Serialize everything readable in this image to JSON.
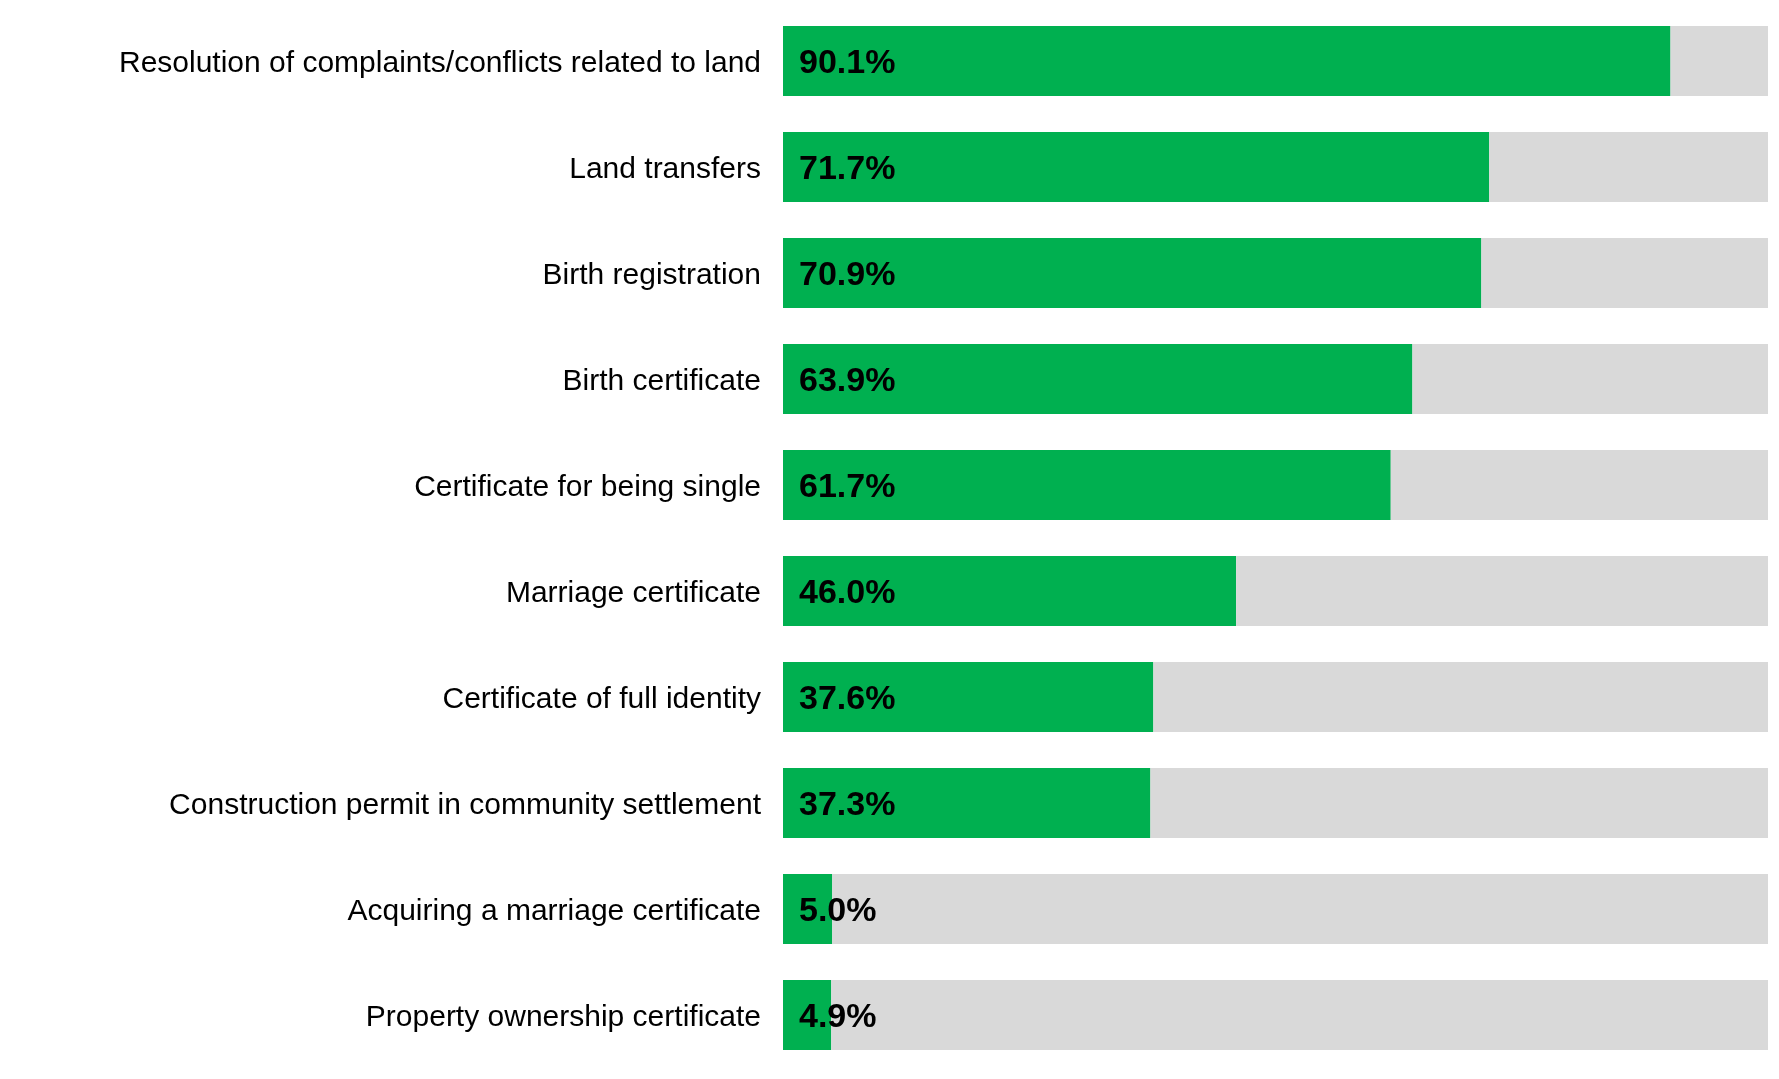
{
  "chart_data": {
    "type": "bar",
    "orientation": "horizontal",
    "stacked": true,
    "categories": [
      "Resolution of complaints/conflicts related to land",
      "Land transfers",
      "Birth registration",
      "Birth certificate",
      "Certificate for being single",
      "Marriage certificate",
      "Certificate of full identity",
      "Construction permit in community settlement",
      "Acquiring a marriage certificate",
      "Property ownership certificate"
    ],
    "series": [
      {
        "color": "#00b050",
        "values": [
          90.1,
          71.7,
          70.9,
          63.9,
          61.7,
          46.0,
          37.6,
          37.3,
          5.0,
          4.9
        ],
        "value_labels": [
          "90.1%",
          "71.7%",
          "70.9%",
          "63.9%",
          "61.7%",
          "46.0%",
          "37.6%",
          "37.3%",
          "5.0%",
          "4.9%"
        ]
      },
      {
        "color": "#d9d9d9",
        "values": [
          9.9,
          28.3,
          29.1,
          36.1,
          38.3,
          54.0,
          62.4,
          62.7,
          95.0,
          95.1
        ]
      }
    ],
    "xlim": [
      0,
      100
    ],
    "tick_labels": "y"
  }
}
